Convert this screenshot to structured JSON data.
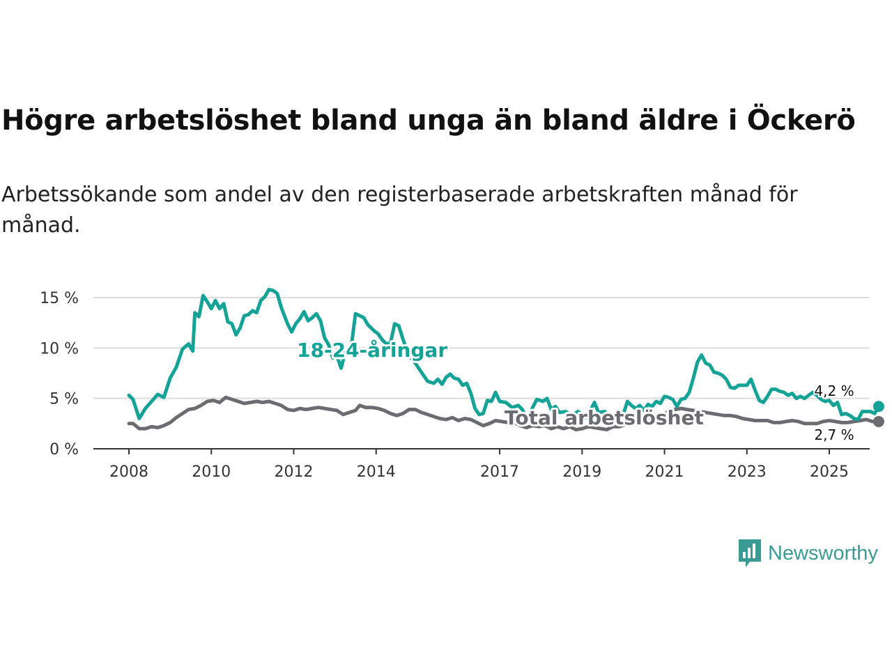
{
  "title": "Högre arbetslöshet bland unga än bland äldre i Öckerö",
  "subtitle": "Arbetssökande som andel av den registerbaserade arbetskraften månad för månad.",
  "brand": "Newsworthy",
  "colors": {
    "youth": "#14a396",
    "total": "#6b6b72",
    "grid": "#dcdcdc",
    "axis": "#333333"
  },
  "chart_data": {
    "type": "line",
    "title": "Högre arbetslöshet bland unga än bland äldre i Öckerö",
    "xlabel": "",
    "ylabel": "",
    "ylim": [
      0,
      15
    ],
    "xlim": [
      2008,
      2026.5
    ],
    "grid": true,
    "y_ticks": [
      0,
      5,
      10,
      15
    ],
    "y_tick_labels": [
      "0 %",
      "5 %",
      "10 %",
      "15 %"
    ],
    "x_ticks": [
      2008,
      2010,
      2012,
      2014,
      2017,
      2019,
      2021,
      2023,
      2025
    ],
    "x_tick_labels": [
      "2008",
      "2010",
      "2012",
      "2014",
      "2017",
      "2019",
      "2021",
      "2023",
      "2025"
    ],
    "series": [
      {
        "name": "18-24-åringar",
        "end_label": "4,2 %",
        "points": [
          [
            2008.0,
            5.3
          ],
          [
            2008.1,
            4.9
          ],
          [
            2008.25,
            3.0
          ],
          [
            2008.4,
            4.0
          ],
          [
            2008.55,
            4.7
          ],
          [
            2008.7,
            5.4
          ],
          [
            2008.85,
            5.1
          ],
          [
            2009.0,
            7.0
          ],
          [
            2009.15,
            8.1
          ],
          [
            2009.3,
            9.9
          ],
          [
            2009.45,
            10.4
          ],
          [
            2009.55,
            9.7
          ],
          [
            2009.6,
            13.5
          ],
          [
            2009.7,
            13.1
          ],
          [
            2009.8,
            15.2
          ],
          [
            2009.9,
            14.6
          ],
          [
            2010.0,
            13.9
          ],
          [
            2010.1,
            14.7
          ],
          [
            2010.2,
            13.9
          ],
          [
            2010.3,
            14.4
          ],
          [
            2010.4,
            12.6
          ],
          [
            2010.5,
            12.4
          ],
          [
            2010.6,
            11.3
          ],
          [
            2010.7,
            12.0
          ],
          [
            2010.8,
            13.2
          ],
          [
            2010.9,
            13.3
          ],
          [
            2011.0,
            13.7
          ],
          [
            2011.1,
            13.5
          ],
          [
            2011.2,
            14.7
          ],
          [
            2011.3,
            15.1
          ],
          [
            2011.4,
            15.8
          ],
          [
            2011.5,
            15.7
          ],
          [
            2011.6,
            15.4
          ],
          [
            2011.7,
            14.0
          ],
          [
            2011.85,
            12.4
          ],
          [
            2011.95,
            11.6
          ],
          [
            2012.05,
            12.4
          ],
          [
            2012.15,
            12.9
          ],
          [
            2012.25,
            13.6
          ],
          [
            2012.35,
            12.7
          ],
          [
            2012.45,
            13.0
          ],
          [
            2012.55,
            13.4
          ],
          [
            2012.65,
            12.7
          ],
          [
            2012.75,
            11.0
          ],
          [
            2012.85,
            10.3
          ],
          [
            2012.95,
            9.0
          ],
          [
            2013.05,
            9.2
          ],
          [
            2013.15,
            8.0
          ],
          [
            2013.25,
            9.6
          ],
          [
            2013.4,
            10.2
          ],
          [
            2013.5,
            13.4
          ],
          [
            2013.6,
            13.2
          ],
          [
            2013.7,
            13.0
          ],
          [
            2013.8,
            12.3
          ],
          [
            2013.95,
            11.7
          ],
          [
            2014.05,
            11.4
          ],
          [
            2014.15,
            10.8
          ],
          [
            2014.25,
            10.4
          ],
          [
            2014.35,
            10.5
          ],
          [
            2014.45,
            12.4
          ],
          [
            2014.55,
            12.2
          ],
          [
            2014.65,
            10.9
          ],
          [
            2014.8,
            9.2
          ],
          [
            2014.95,
            8.5
          ],
          [
            2015.1,
            7.6
          ],
          [
            2015.25,
            6.7
          ],
          [
            2015.4,
            6.5
          ],
          [
            2015.5,
            6.9
          ],
          [
            2015.6,
            6.4
          ],
          [
            2015.7,
            7.1
          ],
          [
            2015.8,
            7.4
          ],
          [
            2015.9,
            7.0
          ],
          [
            2016.0,
            6.9
          ],
          [
            2016.1,
            6.3
          ],
          [
            2016.2,
            6.5
          ],
          [
            2016.3,
            5.5
          ],
          [
            2016.4,
            4.0
          ],
          [
            2016.5,
            3.4
          ],
          [
            2016.6,
            3.5
          ],
          [
            2016.7,
            4.8
          ],
          [
            2016.8,
            4.7
          ],
          [
            2016.9,
            5.6
          ],
          [
            2017.0,
            4.7
          ],
          [
            2017.15,
            4.6
          ],
          [
            2017.3,
            4.1
          ],
          [
            2017.45,
            4.3
          ],
          [
            2017.55,
            3.9
          ],
          [
            2017.65,
            3.0
          ],
          [
            2017.8,
            4.1
          ],
          [
            2017.9,
            4.9
          ],
          [
            2018.05,
            4.7
          ],
          [
            2018.15,
            5.0
          ],
          [
            2018.25,
            3.9
          ],
          [
            2018.35,
            4.2
          ],
          [
            2018.45,
            3.6
          ],
          [
            2018.6,
            3.7
          ],
          [
            2018.75,
            3.3
          ],
          [
            2018.9,
            3.7
          ],
          [
            2019.0,
            3.4
          ],
          [
            2019.1,
            3.1
          ],
          [
            2019.2,
            3.8
          ],
          [
            2019.3,
            4.6
          ],
          [
            2019.4,
            3.6
          ],
          [
            2019.55,
            3.7
          ],
          [
            2019.7,
            2.6
          ],
          [
            2019.85,
            3.3
          ],
          [
            2020.0,
            3.4
          ],
          [
            2020.1,
            4.7
          ],
          [
            2020.2,
            4.3
          ],
          [
            2020.3,
            4.0
          ],
          [
            2020.4,
            4.3
          ],
          [
            2020.5,
            3.8
          ],
          [
            2020.6,
            4.4
          ],
          [
            2020.7,
            4.2
          ],
          [
            2020.8,
            4.7
          ],
          [
            2020.9,
            4.5
          ],
          [
            2021.0,
            5.2
          ],
          [
            2021.1,
            5.1
          ],
          [
            2021.2,
            4.9
          ],
          [
            2021.3,
            4.2
          ],
          [
            2021.4,
            4.9
          ],
          [
            2021.5,
            5.0
          ],
          [
            2021.6,
            5.6
          ],
          [
            2021.7,
            7.0
          ],
          [
            2021.8,
            8.6
          ],
          [
            2021.9,
            9.3
          ],
          [
            2022.0,
            8.5
          ],
          [
            2022.1,
            8.3
          ],
          [
            2022.2,
            7.6
          ],
          [
            2022.3,
            7.5
          ],
          [
            2022.4,
            7.3
          ],
          [
            2022.5,
            6.9
          ],
          [
            2022.6,
            6.1
          ],
          [
            2022.7,
            6.0
          ],
          [
            2022.8,
            6.3
          ],
          [
            2022.9,
            6.3
          ],
          [
            2023.0,
            6.3
          ],
          [
            2023.1,
            6.9
          ],
          [
            2023.2,
            5.8
          ],
          [
            2023.3,
            4.8
          ],
          [
            2023.4,
            4.6
          ],
          [
            2023.5,
            5.2
          ],
          [
            2023.6,
            5.9
          ],
          [
            2023.7,
            5.9
          ],
          [
            2023.8,
            5.7
          ],
          [
            2023.9,
            5.6
          ],
          [
            2024.0,
            5.3
          ],
          [
            2024.1,
            5.5
          ],
          [
            2024.2,
            5.0
          ],
          [
            2024.3,
            5.2
          ],
          [
            2024.4,
            5.0
          ],
          [
            2024.5,
            5.3
          ],
          [
            2024.6,
            5.6
          ],
          [
            2024.7,
            5.3
          ],
          [
            2024.8,
            4.9
          ],
          [
            2024.9,
            4.7
          ],
          [
            2025.0,
            4.8
          ],
          [
            2025.1,
            4.3
          ],
          [
            2025.2,
            4.6
          ],
          [
            2025.3,
            3.4
          ],
          [
            2025.4,
            3.5
          ],
          [
            2025.5,
            3.3
          ],
          [
            2025.6,
            3.0
          ],
          [
            2025.7,
            2.9
          ],
          [
            2025.8,
            3.7
          ],
          [
            2025.9,
            3.7
          ],
          [
            2026.0,
            3.7
          ],
          [
            2026.1,
            3.5
          ],
          [
            2026.2,
            4.2
          ]
        ]
      },
      {
        "name": "Total arbetslöshet",
        "end_label": "2,7 %",
        "points": [
          [
            2008.0,
            2.5
          ],
          [
            2008.1,
            2.5
          ],
          [
            2008.25,
            2.0
          ],
          [
            2008.4,
            2.0
          ],
          [
            2008.55,
            2.2
          ],
          [
            2008.7,
            2.1
          ],
          [
            2008.85,
            2.3
          ],
          [
            2009.0,
            2.6
          ],
          [
            2009.15,
            3.1
          ],
          [
            2009.3,
            3.5
          ],
          [
            2009.45,
            3.9
          ],
          [
            2009.6,
            4.0
          ],
          [
            2009.75,
            4.3
          ],
          [
            2009.9,
            4.7
          ],
          [
            2010.05,
            4.8
          ],
          [
            2010.2,
            4.6
          ],
          [
            2010.35,
            5.1
          ],
          [
            2010.5,
            4.9
          ],
          [
            2010.65,
            4.7
          ],
          [
            2010.8,
            4.5
          ],
          [
            2010.95,
            4.6
          ],
          [
            2011.1,
            4.7
          ],
          [
            2011.25,
            4.6
          ],
          [
            2011.4,
            4.7
          ],
          [
            2011.55,
            4.5
          ],
          [
            2011.7,
            4.3
          ],
          [
            2011.85,
            3.9
          ],
          [
            2012.0,
            3.8
          ],
          [
            2012.15,
            4.0
          ],
          [
            2012.3,
            3.9
          ],
          [
            2012.45,
            4.0
          ],
          [
            2012.6,
            4.1
          ],
          [
            2012.75,
            4.0
          ],
          [
            2012.9,
            3.9
          ],
          [
            2013.05,
            3.8
          ],
          [
            2013.2,
            3.4
          ],
          [
            2013.35,
            3.6
          ],
          [
            2013.5,
            3.8
          ],
          [
            2013.6,
            4.3
          ],
          [
            2013.75,
            4.1
          ],
          [
            2013.9,
            4.1
          ],
          [
            2014.05,
            4.0
          ],
          [
            2014.2,
            3.8
          ],
          [
            2014.35,
            3.5
          ],
          [
            2014.5,
            3.3
          ],
          [
            2014.65,
            3.5
          ],
          [
            2014.8,
            3.9
          ],
          [
            2014.95,
            3.9
          ],
          [
            2015.1,
            3.6
          ],
          [
            2015.25,
            3.4
          ],
          [
            2015.4,
            3.2
          ],
          [
            2015.55,
            3.0
          ],
          [
            2015.7,
            2.9
          ],
          [
            2015.85,
            3.1
          ],
          [
            2016.0,
            2.8
          ],
          [
            2016.15,
            3.0
          ],
          [
            2016.3,
            2.9
          ],
          [
            2016.45,
            2.6
          ],
          [
            2016.6,
            2.3
          ],
          [
            2016.75,
            2.5
          ],
          [
            2016.9,
            2.8
          ],
          [
            2017.05,
            2.7
          ],
          [
            2017.2,
            2.6
          ],
          [
            2017.35,
            2.6
          ],
          [
            2017.5,
            2.3
          ],
          [
            2017.65,
            2.1
          ],
          [
            2017.8,
            2.3
          ],
          [
            2017.95,
            2.2
          ],
          [
            2018.1,
            2.3
          ],
          [
            2018.25,
            2.0
          ],
          [
            2018.4,
            2.2
          ],
          [
            2018.55,
            2.0
          ],
          [
            2018.7,
            2.2
          ],
          [
            2018.85,
            1.9
          ],
          [
            2019.0,
            2.0
          ],
          [
            2019.15,
            2.2
          ],
          [
            2019.3,
            2.1
          ],
          [
            2019.45,
            2.0
          ],
          [
            2019.6,
            1.9
          ],
          [
            2019.75,
            2.2
          ],
          [
            2019.9,
            2.2
          ],
          [
            2020.05,
            2.4
          ],
          [
            2020.2,
            2.5
          ],
          [
            2020.35,
            2.6
          ],
          [
            2020.5,
            2.7
          ],
          [
            2020.65,
            2.9
          ],
          [
            2020.8,
            3.0
          ],
          [
            2020.95,
            3.3
          ],
          [
            2021.1,
            3.7
          ],
          [
            2021.25,
            3.9
          ],
          [
            2021.4,
            4.0
          ],
          [
            2021.55,
            3.9
          ],
          [
            2021.7,
            3.8
          ],
          [
            2021.85,
            3.7
          ],
          [
            2022.0,
            3.6
          ],
          [
            2022.15,
            3.5
          ],
          [
            2022.3,
            3.4
          ],
          [
            2022.45,
            3.3
          ],
          [
            2022.6,
            3.3
          ],
          [
            2022.75,
            3.2
          ],
          [
            2022.9,
            3.0
          ],
          [
            2023.05,
            2.9
          ],
          [
            2023.2,
            2.8
          ],
          [
            2023.35,
            2.8
          ],
          [
            2023.5,
            2.8
          ],
          [
            2023.65,
            2.6
          ],
          [
            2023.8,
            2.6
          ],
          [
            2023.95,
            2.7
          ],
          [
            2024.1,
            2.8
          ],
          [
            2024.25,
            2.7
          ],
          [
            2024.4,
            2.5
          ],
          [
            2024.55,
            2.5
          ],
          [
            2024.7,
            2.5
          ],
          [
            2024.85,
            2.7
          ],
          [
            2025.0,
            2.8
          ],
          [
            2025.15,
            2.7
          ],
          [
            2025.3,
            2.6
          ],
          [
            2025.45,
            2.6
          ],
          [
            2025.6,
            2.7
          ],
          [
            2025.75,
            2.8
          ],
          [
            2025.9,
            2.9
          ],
          [
            2026.05,
            2.7
          ],
          [
            2026.2,
            2.7
          ]
        ]
      }
    ]
  }
}
